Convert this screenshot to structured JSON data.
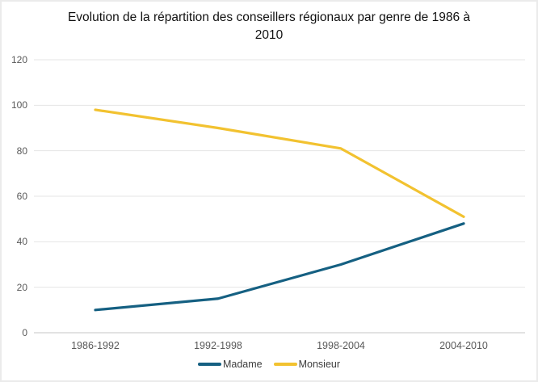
{
  "chart_data": {
    "type": "line",
    "title": "Evolution de la répartition des conseillers régionaux par genre de 1986 à 2010",
    "categories": [
      "1986-1992",
      "1992-1998",
      "1998-2004",
      "2004-2010"
    ],
    "series": [
      {
        "name": "Madame",
        "color": "#156082",
        "values": [
          10,
          15,
          30,
          48
        ]
      },
      {
        "name": "Monsieur",
        "color": "#F2C230",
        "values": [
          98,
          90,
          81,
          51
        ]
      }
    ],
    "xlabel": "",
    "ylabel": "",
    "ylim": [
      0,
      120
    ],
    "ytick_step": 20,
    "grid": true,
    "legend_position": "bottom"
  },
  "colors": {
    "gridline": "#e5e5e5",
    "axis_line": "#c6c6c6",
    "tick_label": "#595959",
    "legend_text": "#3d3d3d",
    "title_text": "#111111",
    "background": "#ffffff",
    "frame_border": "#ebebeb"
  }
}
